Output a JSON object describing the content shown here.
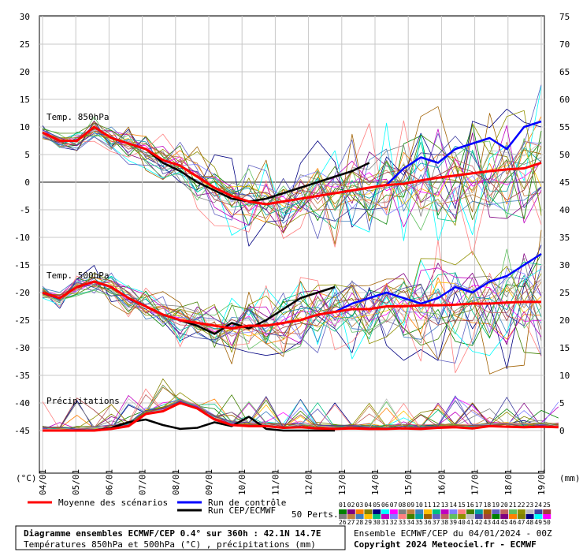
{
  "chart_data": {
    "type": "line",
    "panels": {
      "t850_label": "Temp. 850hPa",
      "t500_label": "Temp. 500hPa",
      "precip_label": "Précipitations"
    },
    "x_ticks": [
      "04/01",
      "05/01",
      "06/01",
      "07/01",
      "08/01",
      "09/01",
      "10/01",
      "11/01",
      "12/01",
      "13/01",
      "14/01",
      "15/01",
      "16/01",
      "17/01",
      "18/01",
      "19/01"
    ],
    "y_left_ticks": [
      30,
      25,
      20,
      15,
      10,
      5,
      0,
      -5,
      -10,
      -15,
      -20,
      -25,
      -30,
      -35,
      -40,
      -45
    ],
    "y_left_range": [
      -45,
      30
    ],
    "y_left_unit": "(°C)",
    "y_right_ticks": [
      75,
      70,
      65,
      60,
      55,
      50,
      45,
      40,
      35,
      30,
      25,
      20,
      15,
      10,
      5,
      0
    ],
    "y_right_unit": "(mm)",
    "series": [
      {
        "name": "Moyenne des scénarios",
        "color": "#ff0000",
        "t850": [
          9,
          7.5,
          7.5,
          10,
          8,
          7,
          6,
          4,
          3,
          1,
          -1,
          -2.5,
          -3.5,
          -4,
          -3.5,
          -3,
          -2.5,
          -2,
          -1.5,
          -1,
          -0.5,
          -0.3,
          0.3,
          0.8,
          1.2,
          1.6,
          2,
          2.3,
          2.5,
          3.5
        ],
        "t500": [
          -20,
          -21,
          -19,
          -18,
          -19,
          -21,
          -22.5,
          -24,
          -25,
          -25.5,
          -26,
          -26.5,
          -26,
          -26,
          -25.5,
          -25,
          -24,
          -23.5,
          -23,
          -23,
          -22.5,
          -22.5,
          -22.3,
          -22.3,
          -22.2,
          -22,
          -22,
          -21.8,
          -21.7,
          -21.7
        ],
        "precip": [
          0,
          0,
          0,
          0,
          0.3,
          0.8,
          3,
          3.5,
          5,
          4,
          2,
          1,
          0.8,
          0.8,
          0.5,
          0.6,
          0.4,
          0.3,
          0.4,
          0.3,
          0.3,
          0.4,
          0.3,
          0.5,
          0.6,
          0.4,
          0.8,
          0.7,
          0.6,
          0.7,
          0.6
        ]
      },
      {
        "name": "Run de contrôle",
        "color": "#0000ff",
        "t850": [
          9,
          7.5,
          7.5,
          10,
          8,
          7,
          6,
          4,
          3,
          1,
          -1,
          -2.5,
          -3.5,
          -4,
          -3.5,
          -3,
          -2.5,
          -2,
          -1.5,
          -1,
          -0.5,
          2.5,
          4.5,
          3.5,
          6,
          7,
          8,
          6,
          10,
          11
        ],
        "t500": [
          -20,
          -21,
          -19,
          -18,
          -19,
          -21,
          -22.5,
          -24,
          -25,
          -25.5,
          -26,
          -26.5,
          -26,
          -26,
          -25.5,
          -25,
          -24,
          -23.5,
          -22,
          -21,
          -20,
          -21,
          -22,
          -21,
          -19,
          -20,
          -18,
          -17,
          -15,
          -13
        ]
      },
      {
        "name": "Run CEP/ECMWF",
        "color": "#000000",
        "t850": [
          9,
          7.5,
          7.5,
          10,
          8,
          7,
          6,
          3.5,
          2,
          0,
          -1.5,
          -3,
          -3.5,
          -3,
          -2,
          -1,
          0,
          1,
          2,
          3.5
        ],
        "t500": [
          -20,
          -21,
          -19,
          -18,
          -19,
          -21,
          -22.5,
          -24,
          -25,
          -26,
          -27.5,
          -25.5,
          -26.5,
          -25,
          -23,
          -21,
          -20,
          -19
        ],
        "precip": [
          0,
          0,
          0,
          0,
          0.5,
          1.5,
          2,
          1,
          0.3,
          0.5,
          1.5,
          0.8,
          2.5,
          0.3,
          0,
          0,
          0,
          0
        ]
      }
    ],
    "grid": true,
    "legend_position": "bottom-left",
    "perts_label": "50 Perts.",
    "perts_row1": [
      "01",
      "02",
      "03",
      "04",
      "05",
      "06",
      "07",
      "08",
      "09",
      "10",
      "11",
      "12",
      "13",
      "14",
      "15",
      "16",
      "17",
      "18",
      "19",
      "20",
      "21",
      "22",
      "23",
      "24",
      "25"
    ],
    "perts_row2": [
      "26",
      "27",
      "28",
      "29",
      "30",
      "31",
      "32",
      "33",
      "34",
      "35",
      "36",
      "37",
      "38",
      "39",
      "40",
      "41",
      "42",
      "43",
      "44",
      "45",
      "46",
      "47",
      "48",
      "49",
      "50"
    ],
    "perts_colors": [
      "#008000",
      "#800080",
      "#ff8000",
      "#808000",
      "#000080",
      "#00ffff",
      "#ff00ff",
      "#808080",
      "#c08040",
      "#4080c0",
      "#ffc000",
      "#00c080",
      "#c000c0",
      "#8080ff",
      "#ff8080",
      "#408000",
      "#00a0a0",
      "#a06000",
      "#6060c0",
      "#c06060",
      "#60c060",
      "#909000",
      "#c0c0c0",
      "#4040a0",
      "#a04040"
    ]
  },
  "footer": {
    "title": "Diagramme ensembles ECMWF/CEP 0.4° sur 360h : 42.1N 14.7E",
    "subtitle": "Températures 850hPa et 500hPa (°C) , précipitations (mm)",
    "run_info": "Ensemble ECMWF/CEP du 04/01/2024 - 00Z",
    "copyright": "Copyright 2024 Meteociel.fr - ECMWF"
  }
}
